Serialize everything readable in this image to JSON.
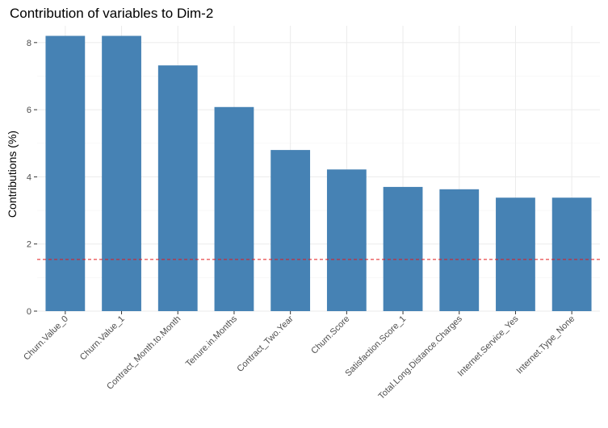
{
  "chart_data": {
    "type": "bar",
    "title": "Contribution of variables to Dim-2",
    "xlabel": "",
    "ylabel": "Contributions (%)",
    "categories": [
      "Churn.Value_0",
      "Churn.Value_1",
      "Contract_Month.to.Month",
      "Tenure.in.Months",
      "Contract_Two.Year",
      "Churn.Score",
      "Satisfaction.Score_1",
      "Total.Long.Distance.Charges",
      "Internet.Service_Yes",
      "Internet.Type_None"
    ],
    "values": [
      8.2,
      8.2,
      7.32,
      6.08,
      4.8,
      4.22,
      3.7,
      3.63,
      3.38,
      3.38
    ],
    "ylim": [
      0,
      8.5
    ],
    "yticks": [
      0,
      2,
      4,
      6,
      8
    ],
    "reference_line": 1.54,
    "bar_color": "#4682b4",
    "reference_line_color": "#e31a1c",
    "grid": true
  }
}
